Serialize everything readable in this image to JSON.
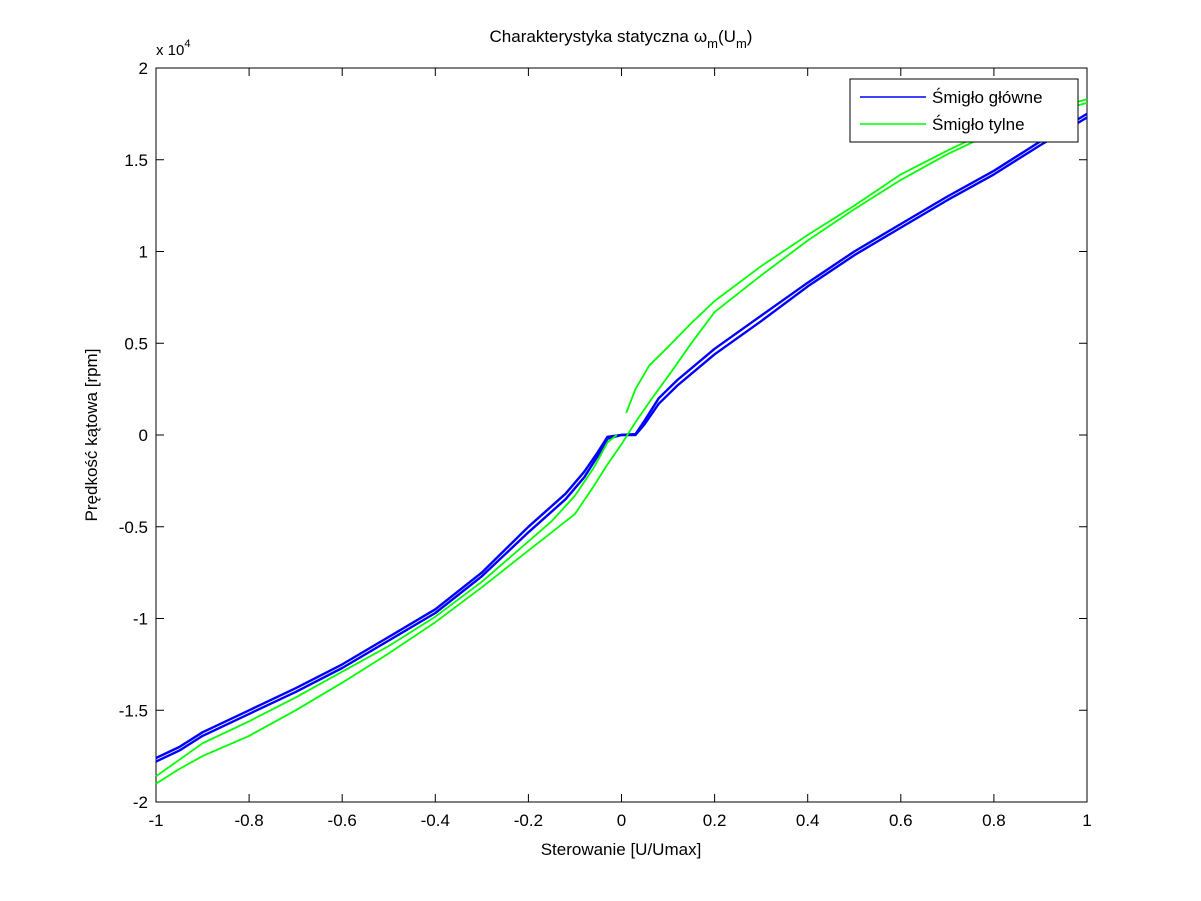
{
  "chart_data": {
    "type": "line",
    "title": "Charakterystyka statyczna",
    "title_symbol": "ω",
    "title_symbol_sub": "m",
    "title_arg": "U",
    "title_arg_sub": "m",
    "xlabel": "Sterowanie [U/Umax]",
    "ylabel": "Prędkość kątowa [rpm]",
    "y_multiplier_label": "x 10",
    "y_multiplier_exp": "4",
    "xlim": [
      -1,
      1
    ],
    "ylim": [
      -2,
      2
    ],
    "y_scale": 10000,
    "xticks": [
      -1,
      -0.8,
      -0.6,
      -0.4,
      -0.2,
      0,
      0.2,
      0.4,
      0.6,
      0.8,
      1
    ],
    "xtick_labels": [
      "-1",
      "-0.8",
      "-0.6",
      "-0.4",
      "-0.2",
      "0",
      "0.2",
      "0.4",
      "0.6",
      "0.8",
      "1"
    ],
    "yticks": [
      -2,
      -1.5,
      -1,
      -0.5,
      0,
      0.5,
      1,
      1.5,
      2
    ],
    "ytick_labels": [
      "-2",
      "-1.5",
      "-1",
      "-0.5",
      "0",
      "0.5",
      "1",
      "1.5",
      "2"
    ],
    "grid": false,
    "legend_position": "top-right",
    "series": [
      {
        "name": "Śmigło główne",
        "color": "#0000ff",
        "branches": [
          {
            "x": [
              -1.0,
              -0.95,
              -0.9,
              -0.8,
              -0.7,
              -0.6,
              -0.5,
              -0.4,
              -0.3,
              -0.2,
              -0.12,
              -0.08,
              -0.05,
              -0.03,
              0.0,
              0.03,
              0.05,
              0.08,
              0.12,
              0.2,
              0.3,
              0.4,
              0.5,
              0.6,
              0.7,
              0.8,
              0.9,
              1.0
            ],
            "y": [
              -17600,
              -17000,
              -16200,
              -15000,
              -13800,
              -12500,
              -11000,
              -9500,
              -7500,
              -5000,
              -3200,
              -2000,
              -900,
              -100,
              0,
              50,
              800,
              2000,
              3000,
              4700,
              6500,
              8300,
              10000,
              11500,
              13000,
              14400,
              16000,
              17500
            ]
          },
          {
            "x": [
              -1.0,
              -0.95,
              -0.9,
              -0.8,
              -0.7,
              -0.6,
              -0.5,
              -0.4,
              -0.3,
              -0.2,
              -0.12,
              -0.08,
              -0.05,
              -0.03,
              0.0,
              0.03,
              0.05,
              0.08,
              0.12,
              0.2,
              0.3,
              0.4,
              0.5,
              0.6,
              0.7,
              0.8,
              0.9,
              1.0
            ],
            "y": [
              -17800,
              -17200,
              -16400,
              -15200,
              -14000,
              -12700,
              -11200,
              -9700,
              -7700,
              -5300,
              -3500,
              -2300,
              -1100,
              -200,
              0,
              0,
              600,
              1700,
              2700,
              4400,
              6200,
              8100,
              9800,
              11300,
              12800,
              14200,
              15800,
              17300
            ]
          }
        ]
      },
      {
        "name": "Śmigło tylne",
        "color": "#00ff00",
        "branches": [
          {
            "x": [
              -1.0,
              -0.95,
              -0.9,
              -0.8,
              -0.7,
              -0.6,
              -0.5,
              -0.4,
              -0.3,
              -0.2,
              -0.15,
              -0.1,
              -0.06,
              -0.03,
              -0.01
            ],
            "y": [
              -18600,
              -17700,
              -16800,
              -15600,
              -14300,
              -12900,
              -11500,
              -9900,
              -8000,
              -5800,
              -4700,
              -3300,
              -1800,
              -400,
              0
            ]
          },
          {
            "x": [
              -1.0,
              -0.95,
              -0.9,
              -0.8,
              -0.7,
              -0.6,
              -0.5,
              -0.4,
              -0.3,
              -0.2,
              -0.15,
              -0.1,
              -0.06,
              -0.03,
              0.0,
              0.03,
              0.06,
              0.1,
              0.15,
              0.2,
              0.3,
              0.4,
              0.5,
              0.6,
              0.7,
              0.8,
              0.9,
              1.0
            ],
            "y": [
              -19000,
              -18200,
              -17500,
              -16400,
              -15000,
              -13500,
              -11900,
              -10200,
              -8300,
              -6300,
              -5300,
              -4300,
              -2800,
              -1600,
              -500,
              700,
              1800,
              3200,
              5000,
              6700,
              8700,
              10600,
              12300,
              13900,
              15300,
              16500,
              17400,
              18100
            ]
          },
          {
            "x": [
              0.01,
              0.03,
              0.06,
              0.1,
              0.15,
              0.2,
              0.3,
              0.4,
              0.5,
              0.6,
              0.7,
              0.8,
              0.9,
              1.0
            ],
            "y": [
              1200,
              2500,
              3800,
              4800,
              6100,
              7300,
              9200,
              10900,
              12500,
              14200,
              15500,
              16700,
              17600,
              18300
            ]
          }
        ]
      }
    ]
  }
}
